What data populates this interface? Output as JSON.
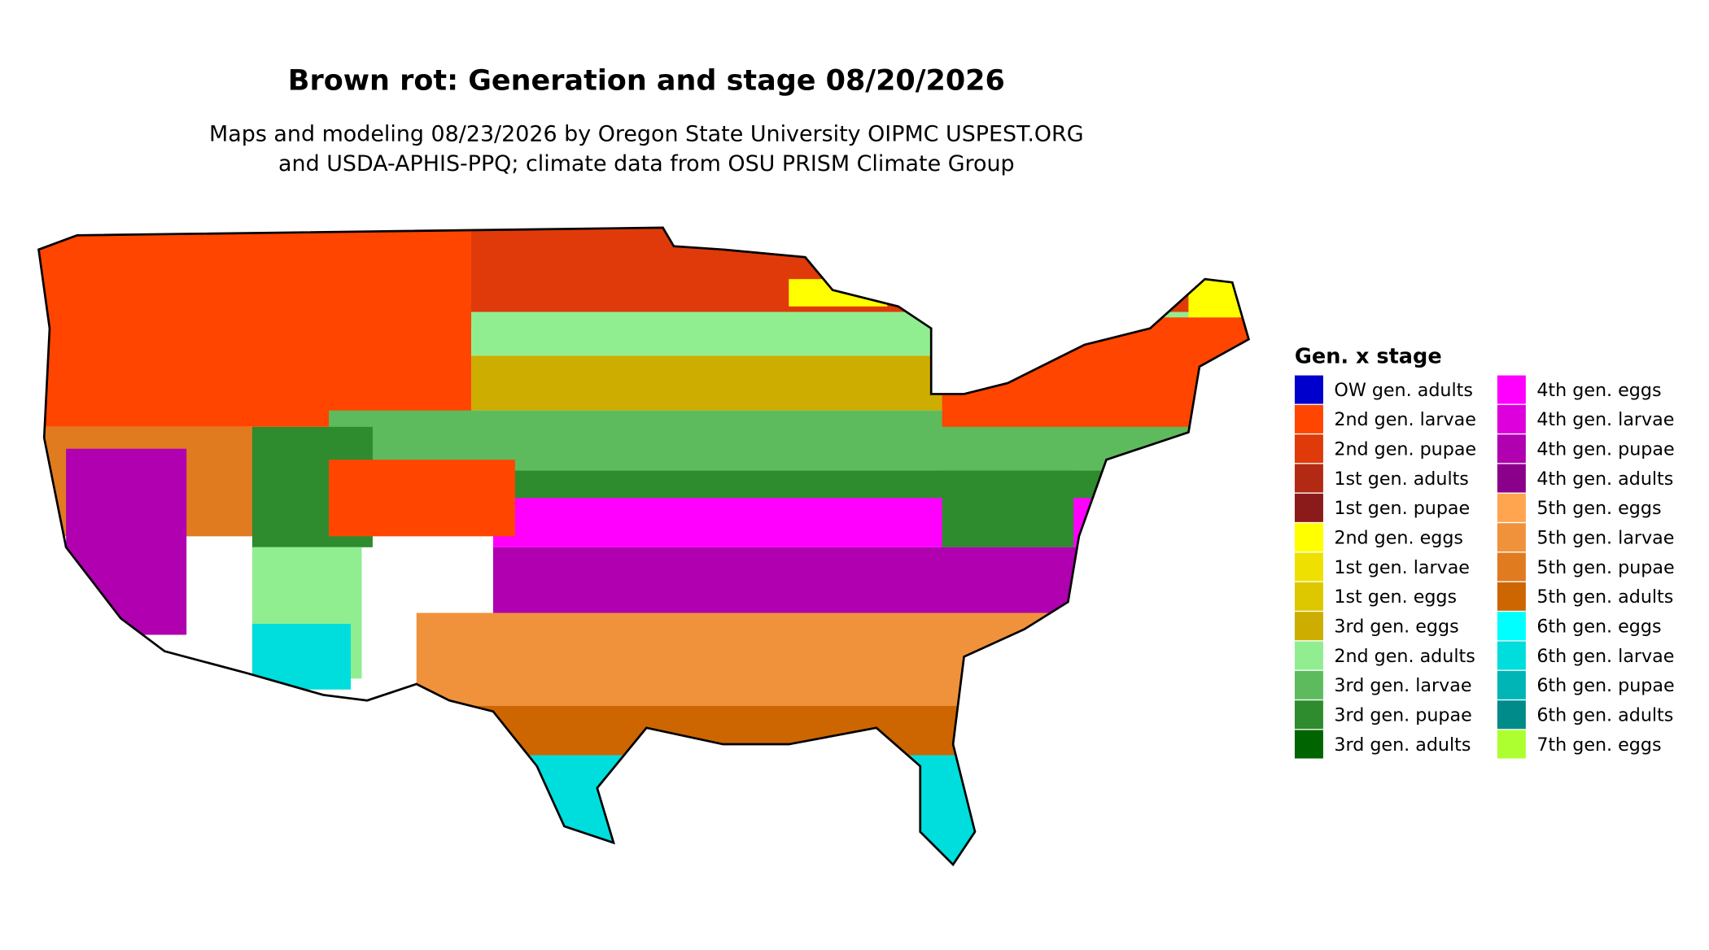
{
  "header": {
    "title": "Brown rot: Generation and stage 08/20/2026",
    "subtitle": [
      "Maps and modeling 08/23/2026 by Oregon State University OIPMC USPEST.ORG",
      "and USDA-APHIS-PPQ; climate data from OSU PRISM Climate Group"
    ]
  },
  "legend": {
    "title": "Gen. x stage",
    "items": [
      {
        "name": "OW gen. adults",
        "color": "#0000cd"
      },
      {
        "name": "2nd gen. larvae",
        "color": "#ff4500"
      },
      {
        "name": "2nd gen. pupae",
        "color": "#e03a0a"
      },
      {
        "name": "1st gen. adults",
        "color": "#b22a14"
      },
      {
        "name": "1st gen. pupae",
        "color": "#8b1a1a"
      },
      {
        "name": "2nd gen. eggs",
        "color": "#ffff00"
      },
      {
        "name": "1st gen. larvae",
        "color": "#eee000"
      },
      {
        "name": "1st gen. eggs",
        "color": "#ddc800"
      },
      {
        "name": "3rd gen. eggs",
        "color": "#cdad00"
      },
      {
        "name": "2nd gen. adults",
        "color": "#90ee90"
      },
      {
        "name": "3rd gen. larvae",
        "color": "#5dbb5d"
      },
      {
        "name": "3rd gen. pupae",
        "color": "#2e8b2e"
      },
      {
        "name": "3rd gen. adults",
        "color": "#006400"
      },
      {
        "name": "4th gen. eggs",
        "color": "#ff00ff"
      },
      {
        "name": "4th gen. larvae",
        "color": "#dd00dd"
      },
      {
        "name": "4th gen. pupae",
        "color": "#b000b0"
      },
      {
        "name": "4th gen. adults",
        "color": "#8b008b"
      },
      {
        "name": "5th gen. eggs",
        "color": "#ffa54f"
      },
      {
        "name": "5th gen. larvae",
        "color": "#f0923c"
      },
      {
        "name": "5th gen. pupae",
        "color": "#e07b20"
      },
      {
        "name": "5th gen. adults",
        "color": "#cd6600"
      },
      {
        "name": "6th gen. eggs",
        "color": "#00ffff"
      },
      {
        "name": "6th gen. larvae",
        "color": "#00dddd"
      },
      {
        "name": "6th gen. pupae",
        "color": "#00b5b5"
      },
      {
        "name": "6th gen. adults",
        "color": "#008b8b"
      },
      {
        "name": "7th gen. eggs",
        "color": "#adff2f"
      }
    ]
  }
}
